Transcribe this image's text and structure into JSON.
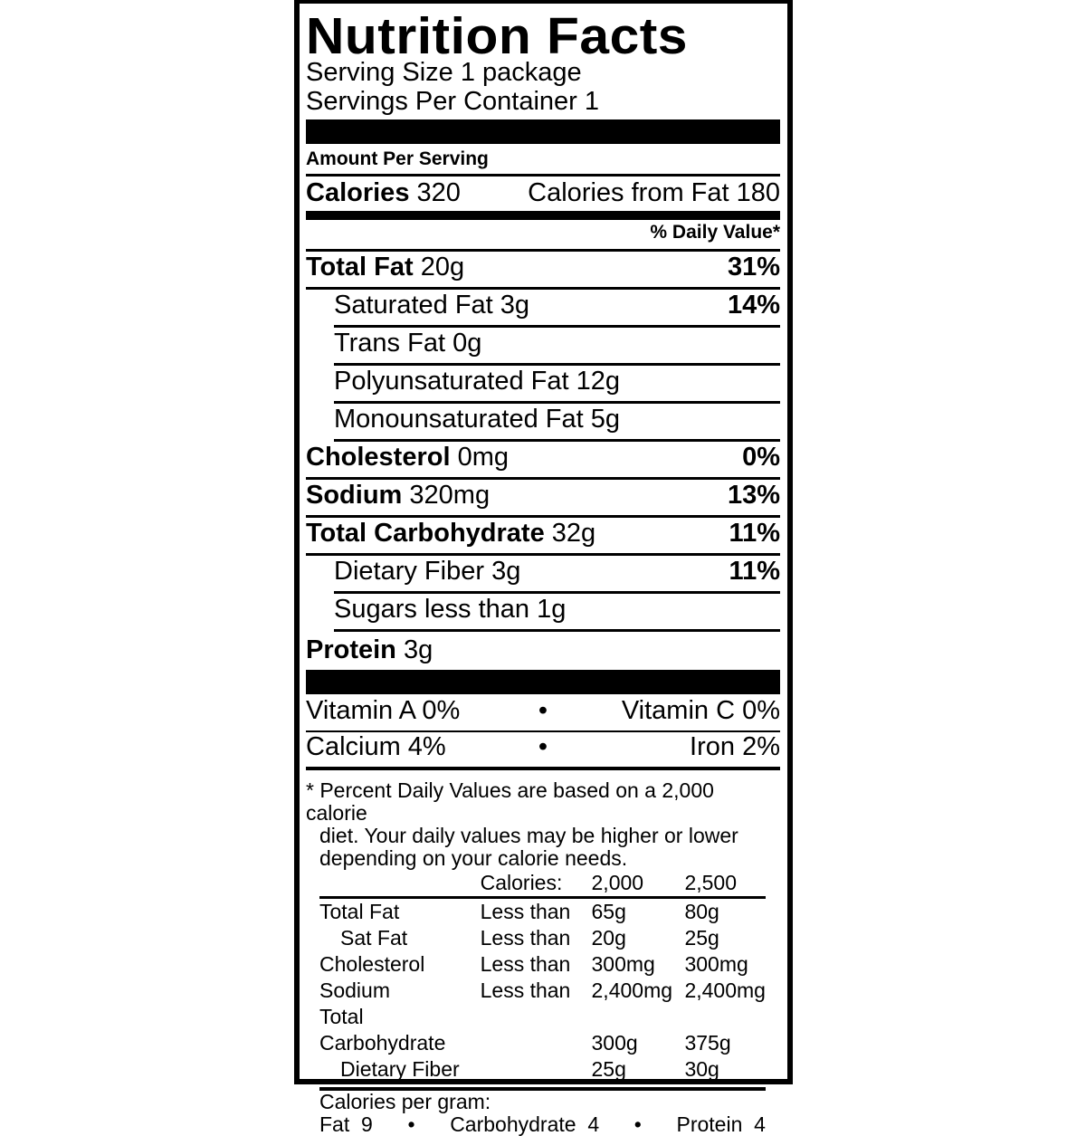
{
  "title": "Nutrition Facts",
  "serving_size": "Serving Size 1 package",
  "servings_per_container": "Servings Per Container 1",
  "amount_per_serving": "Amount Per Serving",
  "calories": {
    "label": "Calories",
    "value": "320",
    "from_fat": "Calories from Fat 180"
  },
  "daily_value_header": "% Daily Value*",
  "nutrients": [
    {
      "label": "Total Fat",
      "amount": "20g",
      "dv": "31%"
    },
    {
      "label": "Saturated Fat",
      "amount": "3g",
      "dv": "14%"
    },
    {
      "label": "Trans Fat",
      "amount": "0g",
      "dv": ""
    },
    {
      "label": "Polyunsaturated Fat",
      "amount": "12g",
      "dv": ""
    },
    {
      "label": "Monounsaturated Fat",
      "amount": "5g",
      "dv": ""
    },
    {
      "label": "Cholesterol",
      "amount": "0mg",
      "dv": "0%"
    },
    {
      "label": "Sodium",
      "amount": "320mg",
      "dv": "13%"
    },
    {
      "label": "Total Carbohydrate",
      "amount": "32g",
      "dv": "11%"
    },
    {
      "label": "Dietary Fiber",
      "amount": "3g",
      "dv": "11%"
    },
    {
      "label": "Sugars",
      "amount": "less than 1g",
      "dv": ""
    },
    {
      "label": "Protein",
      "amount": "3g",
      "dv": ""
    }
  ],
  "vitamins": [
    [
      "Vitamin A 0%",
      "Vitamin C 0%"
    ],
    [
      "Calcium 4%",
      "Iron 2%"
    ]
  ],
  "bullet": "•",
  "footnote": [
    "* Percent Daily Values are based on a 2,000 calorie",
    "diet. Your daily values may be higher or lower",
    "depending on your calorie needs."
  ],
  "dv_table": {
    "header": [
      "",
      "Calories:",
      "2,000",
      "2,500"
    ],
    "rows": [
      [
        "Total Fat",
        "Less than",
        "65g",
        "80g"
      ],
      [
        "Sat Fat",
        "Less than",
        "20g",
        "25g"
      ],
      [
        "Cholesterol",
        "Less than",
        "300mg",
        "300mg"
      ],
      [
        "Sodium",
        "Less than",
        "2,400mg",
        "2,400mg"
      ],
      [
        "Total Carbohydrate",
        "",
        "300g",
        "375g"
      ],
      [
        "Dietary Fiber",
        "",
        "25g",
        "30g"
      ]
    ]
  },
  "calories_per_gram": {
    "label": "Calories per gram:",
    "fat": "Fat  9",
    "carbohydrate": "Carbohydrate  4",
    "protein": "Protein  4"
  }
}
